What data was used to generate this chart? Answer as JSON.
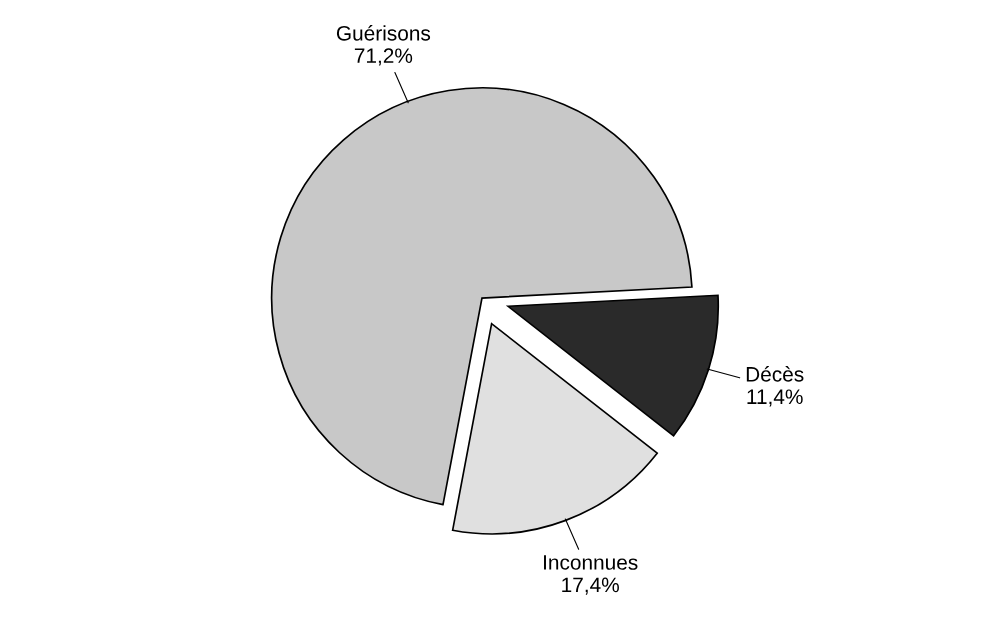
{
  "chart_data": {
    "type": "pie",
    "categories": [
      "Guérisons",
      "Inconnues",
      "Décès"
    ],
    "values": [
      71.2,
      17.4,
      11.4
    ],
    "value_labels": [
      "71,2%",
      "17,4%",
      "11,4%"
    ],
    "colors": [
      "#c8c8c8",
      "#e0e0e0",
      "#2a2a2a"
    ]
  }
}
